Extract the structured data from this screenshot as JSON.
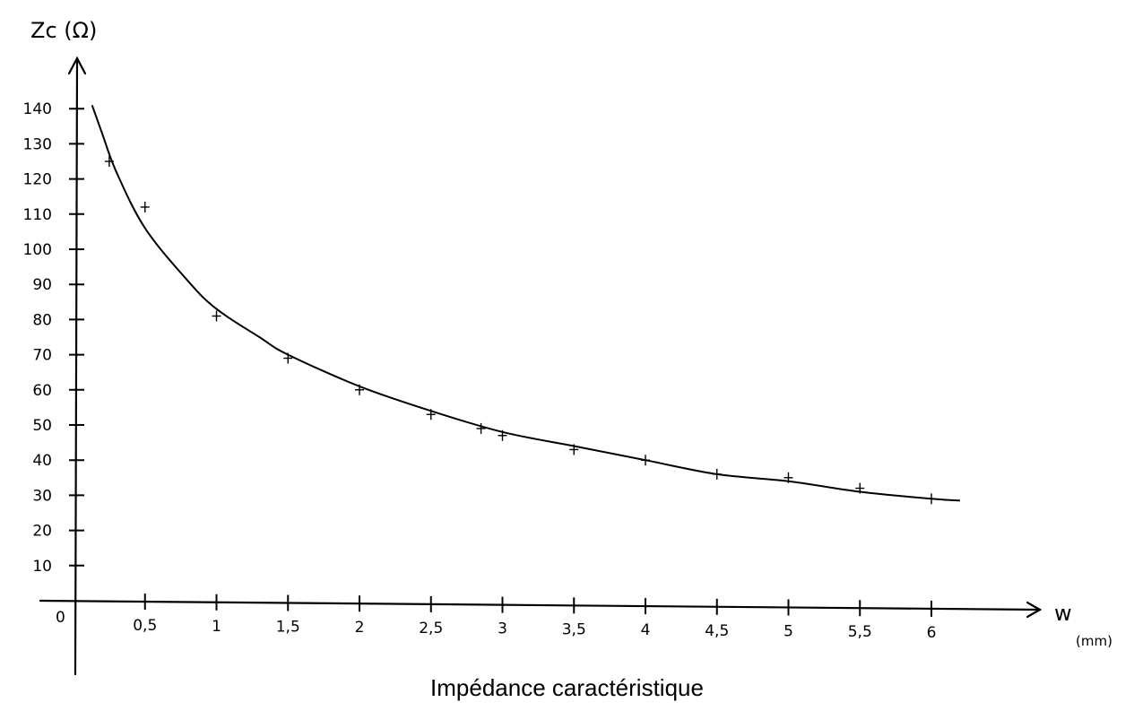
{
  "caption": "Impédance caractéristique",
  "chart_data": {
    "type": "line",
    "title": "",
    "ylabel": "Zc (Ω)",
    "xlabel": "w",
    "xunit": "(mm)",
    "origin_label": "0",
    "xlim": [
      0,
      6.5
    ],
    "ylim": [
      0,
      150
    ],
    "x_ticks": [
      0.5,
      1,
      1.5,
      2,
      2.5,
      3,
      3.5,
      4,
      4.5,
      5,
      5.5,
      6
    ],
    "x_tick_labels": [
      "0,5",
      "1",
      "1,5",
      "2",
      "2,5",
      "3",
      "3,5",
      "4",
      "4,5",
      "5",
      "5,5",
      "6"
    ],
    "y_ticks": [
      10,
      20,
      30,
      40,
      50,
      60,
      70,
      80,
      90,
      100,
      110,
      120,
      130,
      140
    ],
    "y_tick_labels": [
      "10",
      "20",
      "30",
      "40",
      "50",
      "60",
      "70",
      "80",
      "90",
      "100",
      "110",
      "120",
      "130",
      "140"
    ],
    "grid": false,
    "series": [
      {
        "kind": "measured-points",
        "x": [
          0.25,
          0.5,
          1,
          1.5,
          2,
          2.5,
          2.85,
          3,
          3.5,
          4,
          4.5,
          5,
          5.5,
          6
        ],
        "y": [
          125,
          112,
          81,
          69,
          60,
          53,
          49,
          47,
          43,
          40,
          36,
          35,
          32,
          29
        ]
      },
      {
        "kind": "fitted-curve",
        "x": [
          0.13,
          0.2,
          0.3,
          0.5,
          0.8,
          1,
          1.3,
          1.5,
          2,
          2.5,
          3,
          3.5,
          4,
          4.5,
          5,
          5.5,
          6,
          6.2
        ],
        "y": [
          141,
          133,
          122,
          106,
          91,
          83,
          75,
          70,
          61,
          54,
          48,
          44,
          40,
          36,
          34,
          31,
          29,
          28.5
        ]
      }
    ]
  }
}
